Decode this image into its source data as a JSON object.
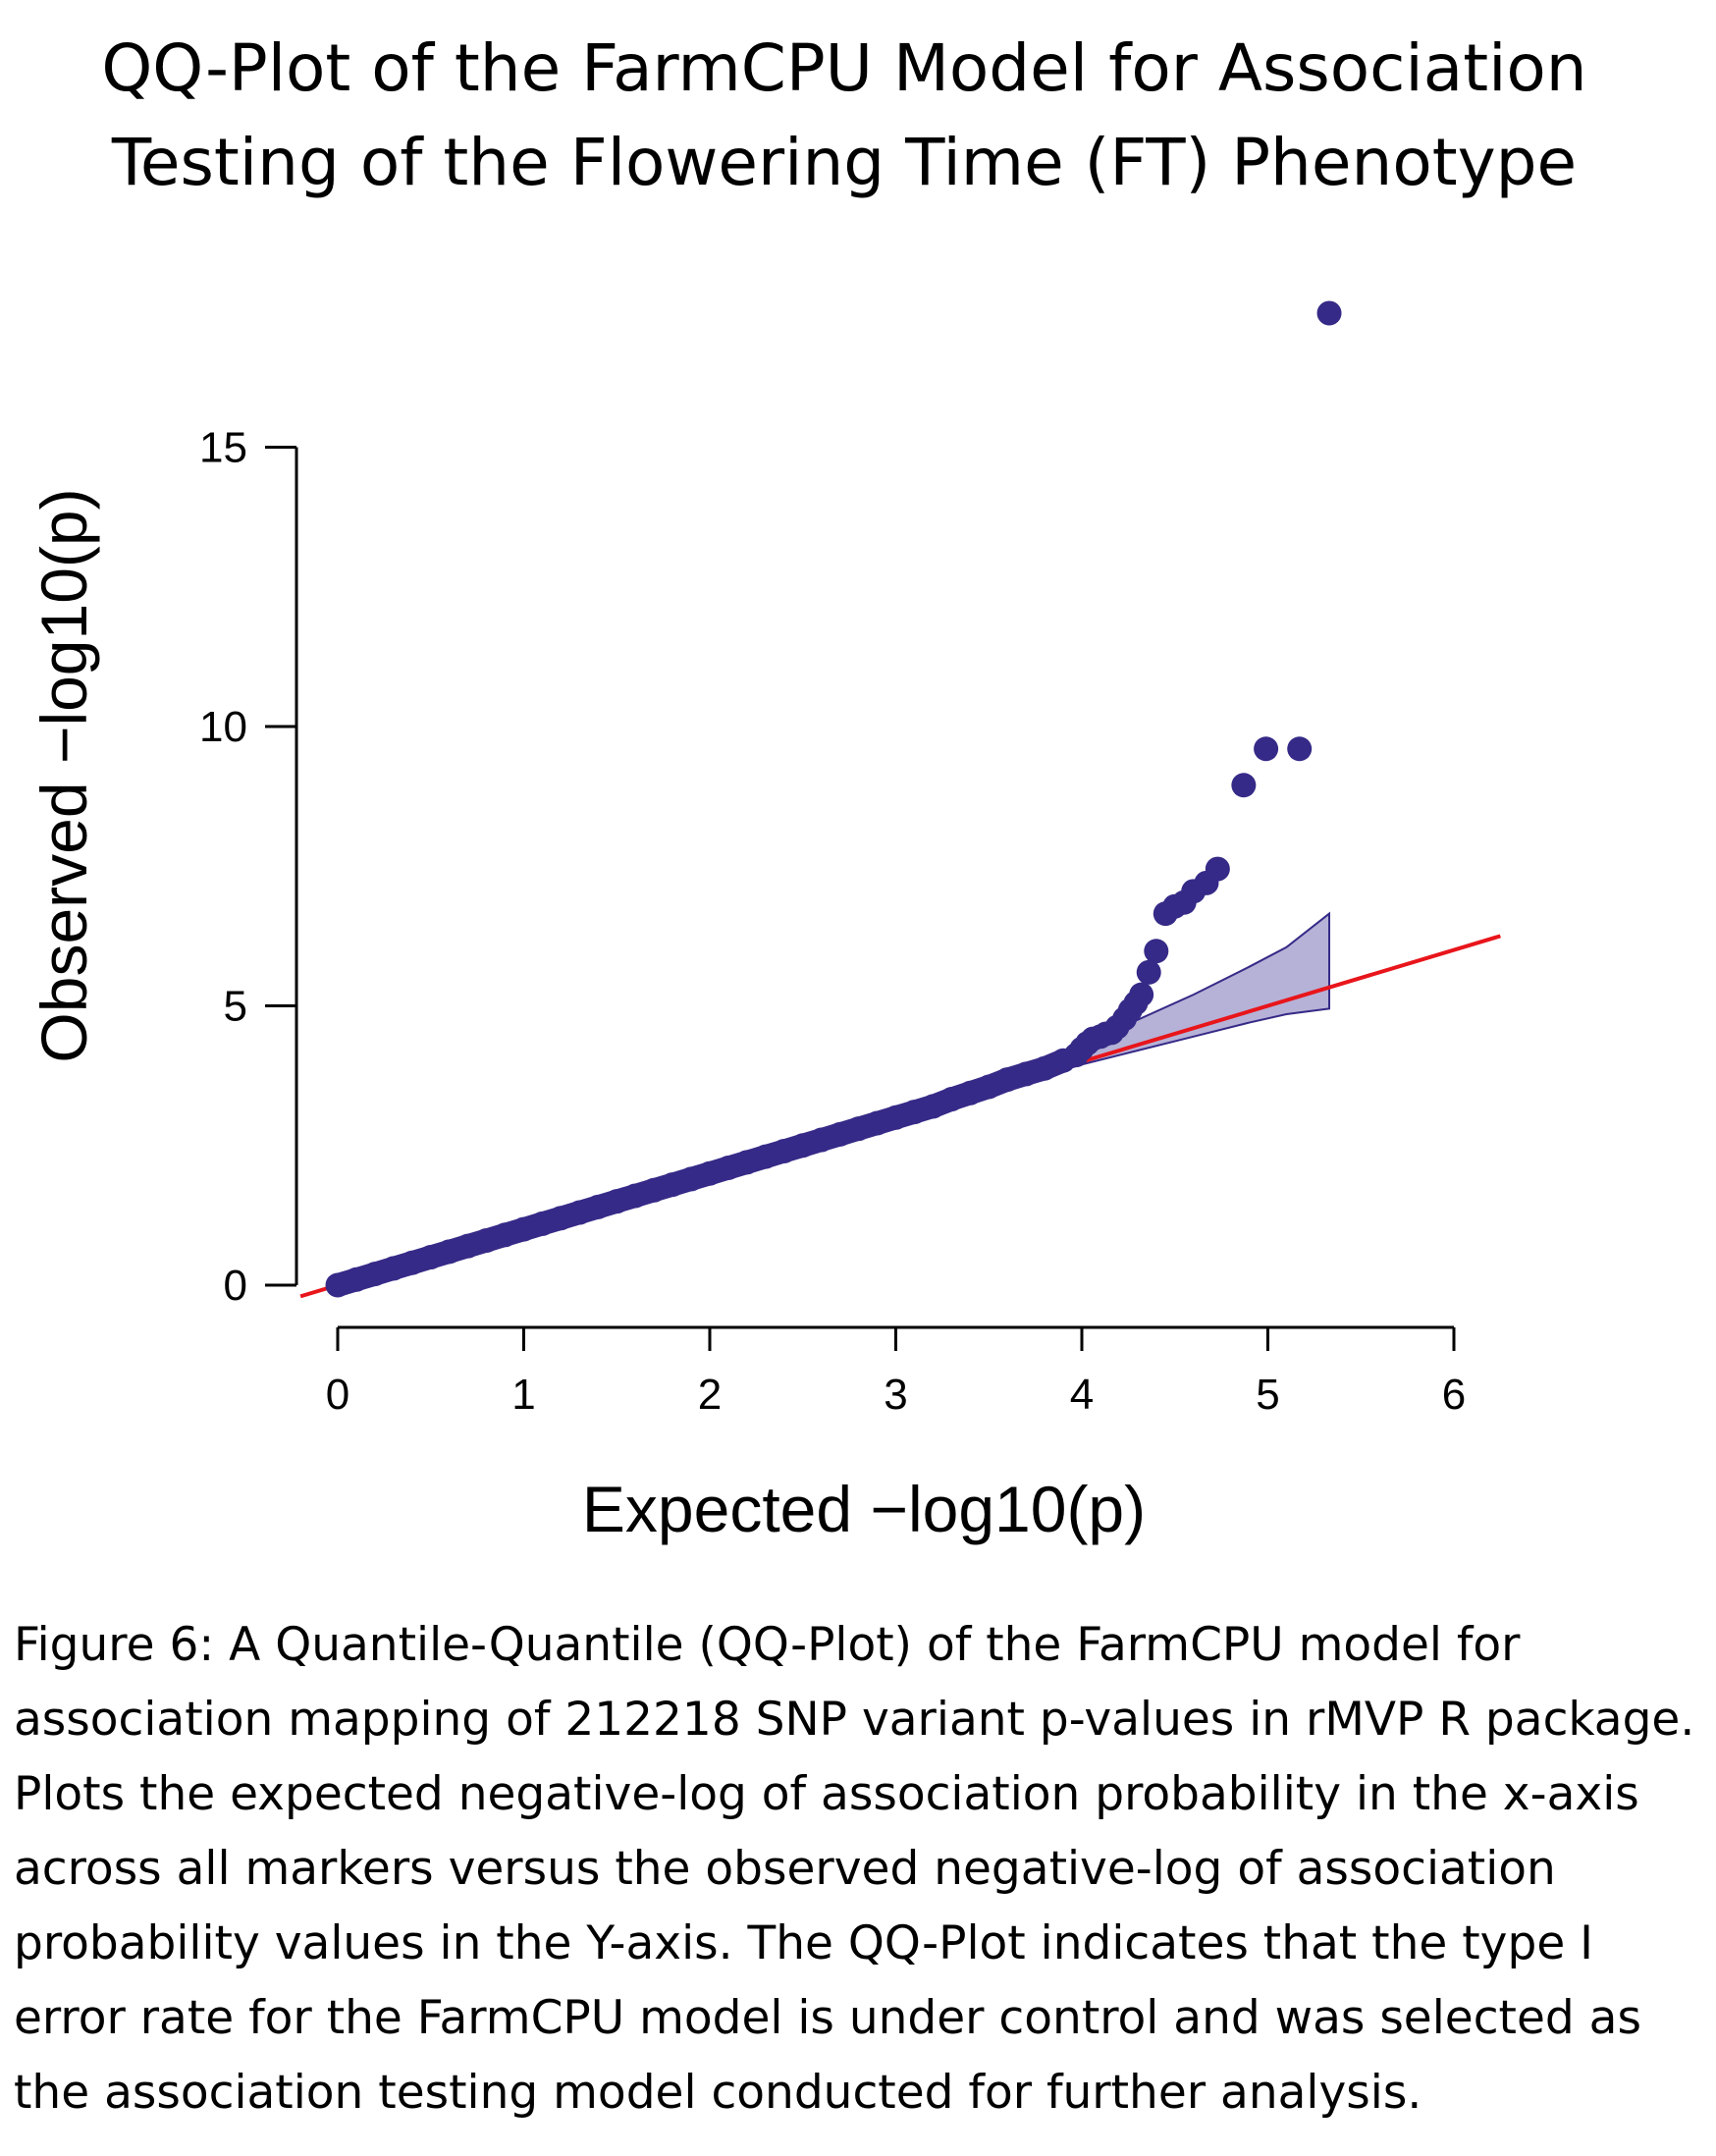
{
  "title": {
    "line1": "QQ-Plot of the FarmCPU Model for Association",
    "line2": "Testing of the Flowering Time (FT) Phenotype"
  },
  "caption": {
    "lines": [
      "Figure 6: A Quantile-Quantile (QQ-Plot) of the FarmCPU model for",
      "association mapping of 212218 SNP variant p-values in rMVP R package.",
      "Plots the expected negative-log of association probability in the x-axis",
      "across all markers versus the observed negative-log of association",
      "probability values in the Y-axis. The QQ-Plot indicates that the type I",
      "error rate for the FarmCPU model is under control and was selected as",
      "the association testing model conducted for further analysis."
    ]
  },
  "chart_data": {
    "type": "scatter",
    "title": "QQ-Plot of the FarmCPU Model for Association Testing of the Flowering Time (FT) Phenotype",
    "xlabel": "Expected −log10(p)",
    "ylabel": "Observed −log10(p)",
    "xlim": [
      0,
      6
    ],
    "ylim": [
      0,
      15
    ],
    "xticks": [
      "0",
      "1",
      "2",
      "3",
      "4",
      "5",
      "6"
    ],
    "yticks": [
      "0",
      "5",
      "10",
      "15"
    ],
    "point_color": "#352a87",
    "reference_line_color": "#e8151b",
    "band_fill": "#a9a5d0",
    "band_stroke": "#352a87",
    "reference_line": {
      "x": [
        -0.2,
        6.25
      ],
      "y": [
        -0.2,
        6.25
      ]
    },
    "confidence_band": {
      "x": [
        3.7,
        4.0,
        4.3,
        4.6,
        4.9,
        5.1,
        5.33
      ],
      "upper": [
        3.75,
        4.3,
        4.75,
        5.2,
        5.7,
        6.05,
        6.65
      ],
      "lower": [
        3.65,
        3.95,
        4.2,
        4.45,
        4.7,
        4.85,
        4.95
      ]
    },
    "points": [
      {
        "x": 0.0,
        "y": 0.0
      },
      {
        "x": 0.1,
        "y": 0.1
      },
      {
        "x": 0.2,
        "y": 0.2
      },
      {
        "x": 0.3,
        "y": 0.3
      },
      {
        "x": 0.4,
        "y": 0.4
      },
      {
        "x": 0.5,
        "y": 0.5
      },
      {
        "x": 0.6,
        "y": 0.6
      },
      {
        "x": 0.7,
        "y": 0.7
      },
      {
        "x": 0.8,
        "y": 0.8
      },
      {
        "x": 0.9,
        "y": 0.9
      },
      {
        "x": 1.0,
        "y": 1.0
      },
      {
        "x": 1.1,
        "y": 1.1
      },
      {
        "x": 1.2,
        "y": 1.2
      },
      {
        "x": 1.3,
        "y": 1.3
      },
      {
        "x": 1.4,
        "y": 1.4
      },
      {
        "x": 1.5,
        "y": 1.5
      },
      {
        "x": 1.6,
        "y": 1.6
      },
      {
        "x": 1.7,
        "y": 1.7
      },
      {
        "x": 1.8,
        "y": 1.8
      },
      {
        "x": 1.9,
        "y": 1.9
      },
      {
        "x": 2.0,
        "y": 2.0
      },
      {
        "x": 2.1,
        "y": 2.1
      },
      {
        "x": 2.2,
        "y": 2.2
      },
      {
        "x": 2.3,
        "y": 2.3
      },
      {
        "x": 2.4,
        "y": 2.4
      },
      {
        "x": 2.5,
        "y": 2.5
      },
      {
        "x": 2.6,
        "y": 2.6
      },
      {
        "x": 2.7,
        "y": 2.7
      },
      {
        "x": 2.8,
        "y": 2.8
      },
      {
        "x": 2.9,
        "y": 2.9
      },
      {
        "x": 3.0,
        "y": 3.0
      },
      {
        "x": 3.1,
        "y": 3.1
      },
      {
        "x": 3.2,
        "y": 3.2
      },
      {
        "x": 3.3,
        "y": 3.33
      },
      {
        "x": 3.4,
        "y": 3.44
      },
      {
        "x": 3.5,
        "y": 3.55
      },
      {
        "x": 3.6,
        "y": 3.68
      },
      {
        "x": 3.7,
        "y": 3.78
      },
      {
        "x": 3.8,
        "y": 3.88
      },
      {
        "x": 3.9,
        "y": 4.02
      },
      {
        "x": 3.97,
        "y": 4.12
      },
      {
        "x": 4.0,
        "y": 4.23
      },
      {
        "x": 4.03,
        "y": 4.33
      },
      {
        "x": 4.06,
        "y": 4.41
      },
      {
        "x": 4.1,
        "y": 4.45
      },
      {
        "x": 4.13,
        "y": 4.5
      },
      {
        "x": 4.16,
        "y": 4.52
      },
      {
        "x": 4.19,
        "y": 4.62
      },
      {
        "x": 4.23,
        "y": 4.77
      },
      {
        "x": 4.26,
        "y": 4.92
      },
      {
        "x": 4.29,
        "y": 5.05
      },
      {
        "x": 4.32,
        "y": 5.2
      },
      {
        "x": 4.36,
        "y": 5.6
      },
      {
        "x": 4.4,
        "y": 5.98
      },
      {
        "x": 4.45,
        "y": 6.65
      },
      {
        "x": 4.5,
        "y": 6.78
      },
      {
        "x": 4.55,
        "y": 6.85
      },
      {
        "x": 4.6,
        "y": 7.05
      },
      {
        "x": 4.67,
        "y": 7.2
      },
      {
        "x": 4.73,
        "y": 7.45
      },
      {
        "x": 4.87,
        "y": 8.95
      },
      {
        "x": 4.99,
        "y": 9.6
      },
      {
        "x": 5.17,
        "y": 9.6
      },
      {
        "x": 5.33,
        "y": 17.4
      }
    ]
  }
}
